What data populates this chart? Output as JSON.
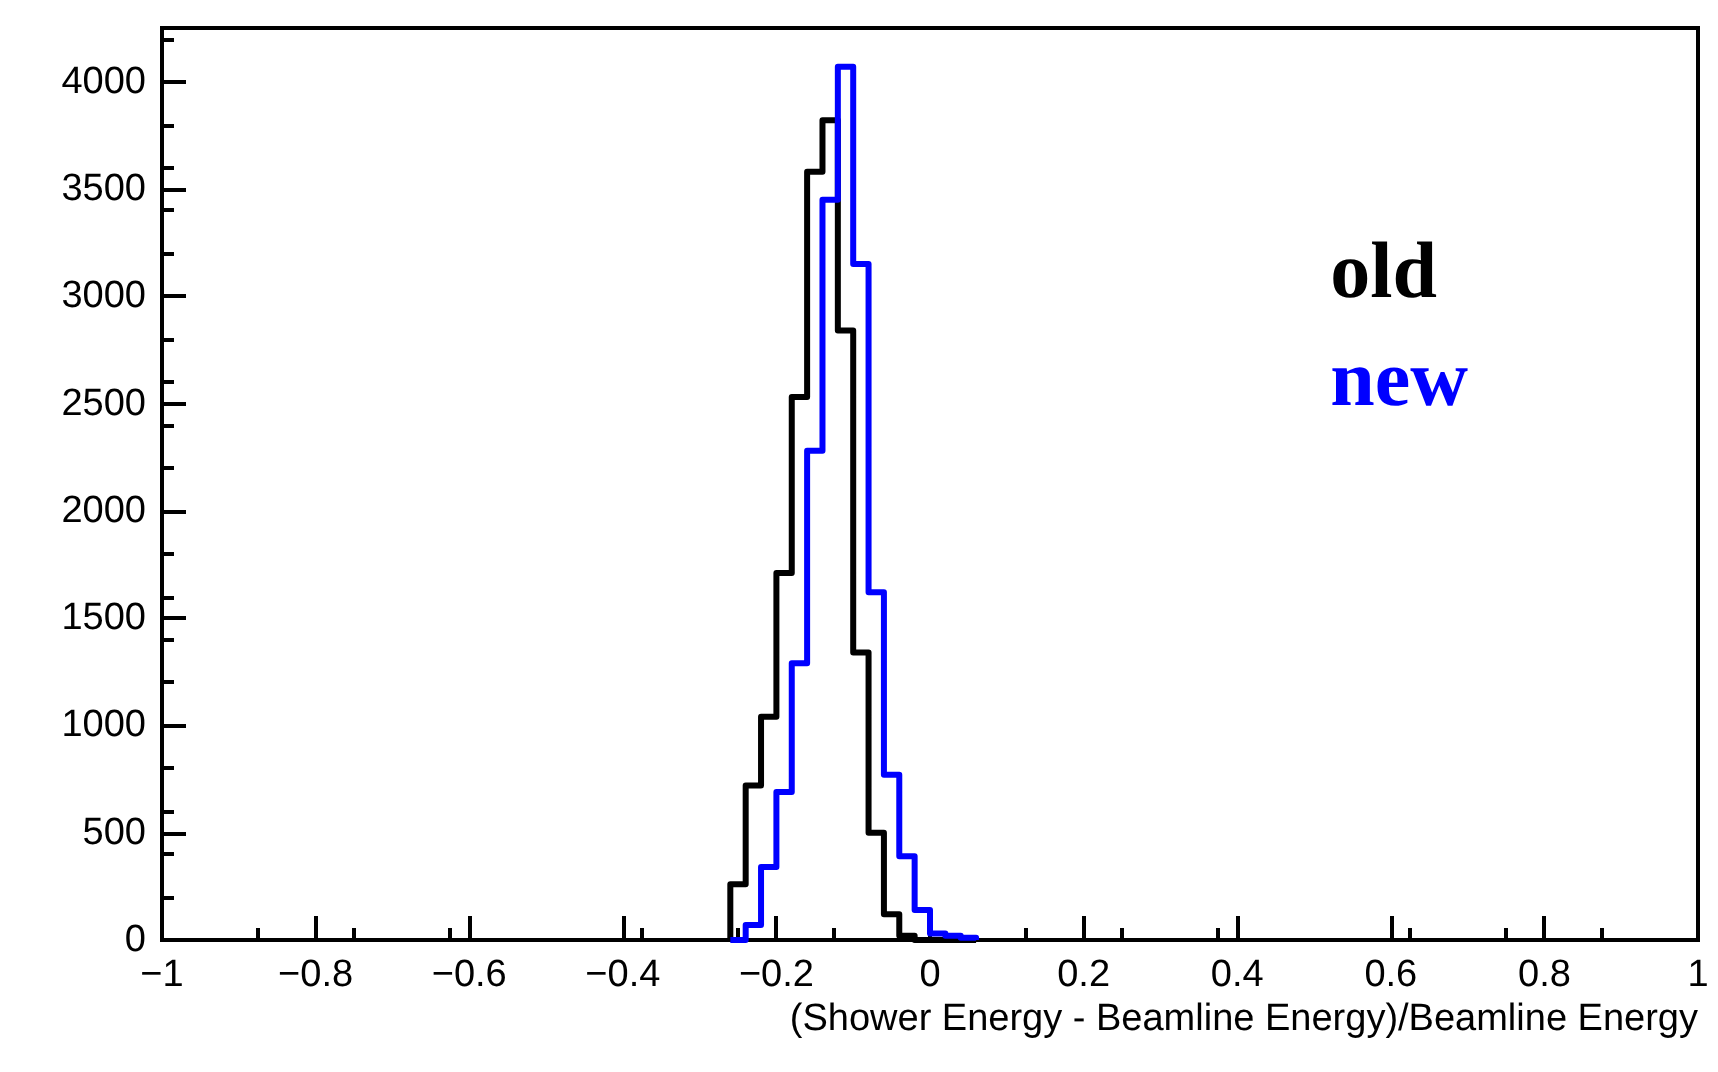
{
  "chart_data": {
    "type": "histogram",
    "xlabel": "(Shower Energy - Beamline Energy)/Beamline Energy",
    "bins": [
      -0.26,
      -0.24,
      -0.22,
      -0.2,
      -0.18,
      -0.16,
      -0.14,
      -0.12,
      -0.1,
      -0.08,
      -0.06,
      -0.04,
      -0.02,
      0,
      0.02,
      0.04,
      0.06
    ],
    "series": [
      {
        "name": "old",
        "color": "#000000",
        "values": [
          260,
          720,
          1040,
          1710,
          2530,
          3580,
          3820,
          2840,
          1340,
          500,
          120,
          20,
          0,
          0,
          0,
          0
        ]
      },
      {
        "name": "new",
        "color": "#0000ff",
        "values": [
          0,
          70,
          340,
          690,
          1290,
          2280,
          3450,
          4070,
          3150,
          1620,
          770,
          390,
          140,
          30,
          20,
          10
        ]
      }
    ],
    "xlim": [
      -1,
      1
    ],
    "xticks": [
      {
        "value": -1,
        "label": "−1"
      },
      {
        "value": -0.8,
        "label": "−0.8"
      },
      {
        "value": -0.6,
        "label": "−0.6"
      },
      {
        "value": -0.4,
        "label": "−0.4"
      },
      {
        "value": -0.2,
        "label": "−0.2"
      },
      0,
      0.2,
      0.4,
      0.6,
      0.8,
      1
    ],
    "ylim": [
      0,
      4250
    ],
    "yticks": [
      0,
      500,
      1000,
      1500,
      2000,
      2500,
      3000,
      3500,
      4000
    ],
    "grid": false,
    "legend": "right",
    "line_style": "solid",
    "marker": "none"
  }
}
